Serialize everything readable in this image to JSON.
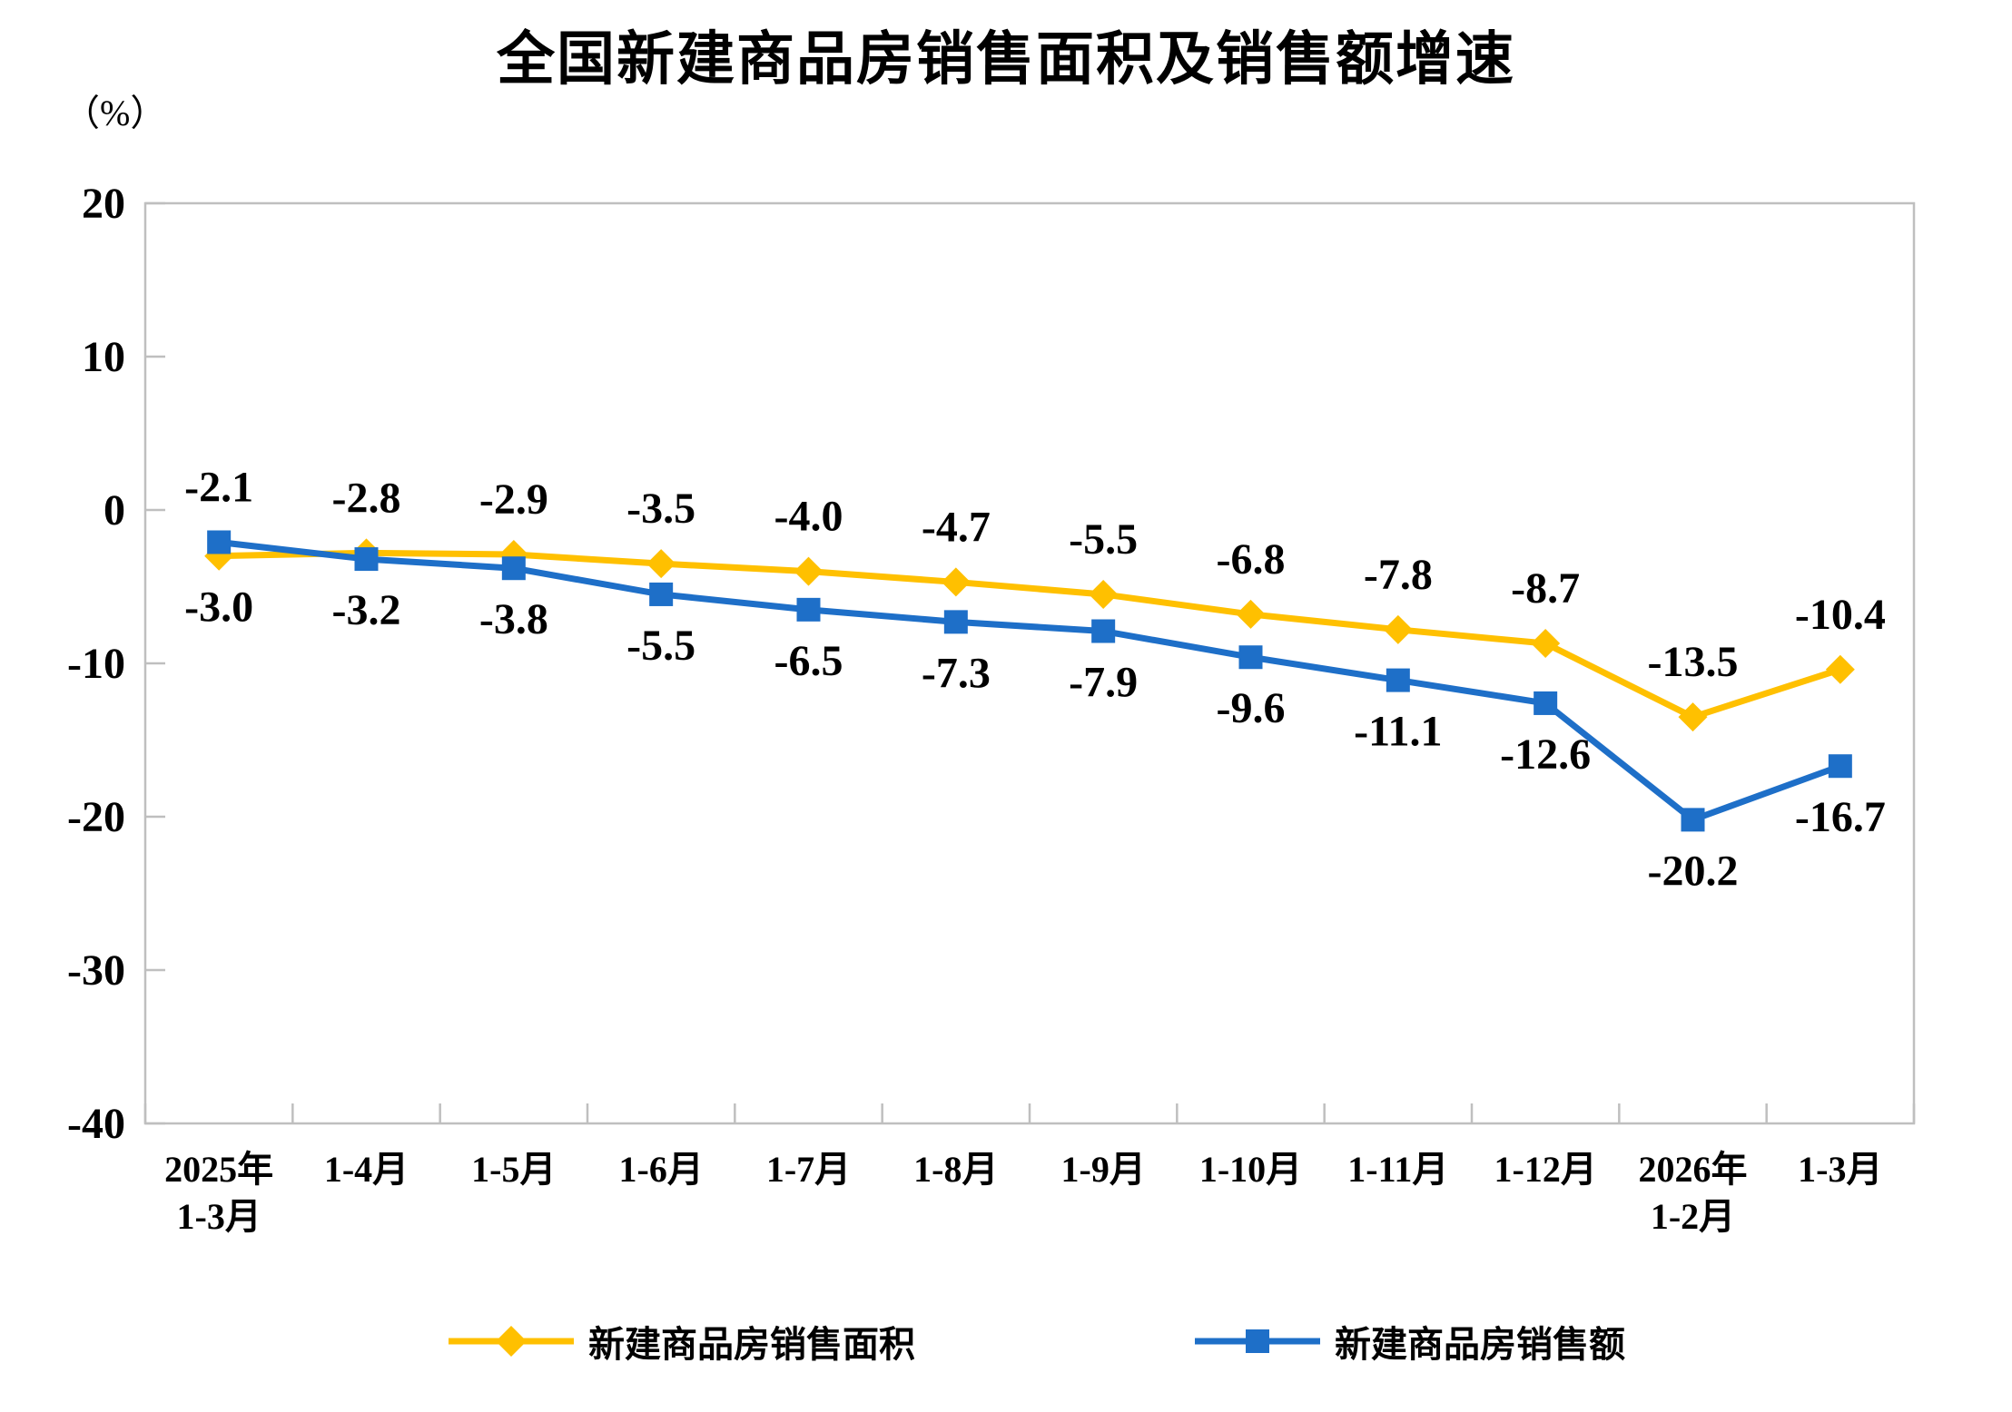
{
  "title": "全国新建商品房销售面积及销售额增速",
  "y_unit_label": "（%）",
  "colors": {
    "sales_area_yellow": "#FFC000",
    "sales_value_blue": "#1E6FC8",
    "axis_gray": "#BFBFBF",
    "label_text": "#000000"
  },
  "legend": {
    "items": [
      {
        "label": "新建商品房销售面积",
        "marker": "diamond",
        "color": "#FFC000"
      },
      {
        "label": "新建商品房销售额",
        "marker": "square",
        "color": "#1E6FC8"
      }
    ]
  },
  "chart_data": {
    "type": "line",
    "title": "全国新建商品房销售面积及销售额增速",
    "ylabel": "（%）",
    "categories": [
      "2025年\n1-3月",
      "1-4月",
      "1-5月",
      "1-6月",
      "1-7月",
      "1-8月",
      "1-9月",
      "1-10月",
      "1-11月",
      "1-12月",
      "2026年\n1-2月",
      "1-3月"
    ],
    "series": [
      {
        "name": "新建商品房销售面积",
        "marker": "diamond",
        "color": "#FFC000",
        "values": [
          -3.0,
          -2.8,
          -2.9,
          -3.5,
          -4.0,
          -4.7,
          -5.5,
          -6.8,
          -7.8,
          -8.7,
          -13.5,
          -10.4
        ]
      },
      {
        "name": "新建商品房销售额",
        "marker": "square",
        "color": "#1E6FC8",
        "values": [
          -2.1,
          -3.2,
          -3.8,
          -5.5,
          -6.5,
          -7.3,
          -7.9,
          -9.6,
          -11.1,
          -12.6,
          -20.2,
          -16.7
        ]
      }
    ],
    "ylim": [
      -40,
      20
    ],
    "ytick_step": 10,
    "yticks": [
      20,
      10,
      0,
      -10,
      -20,
      -30,
      -40
    ],
    "grid": false,
    "data_labels": true,
    "legend_position": "bottom"
  }
}
